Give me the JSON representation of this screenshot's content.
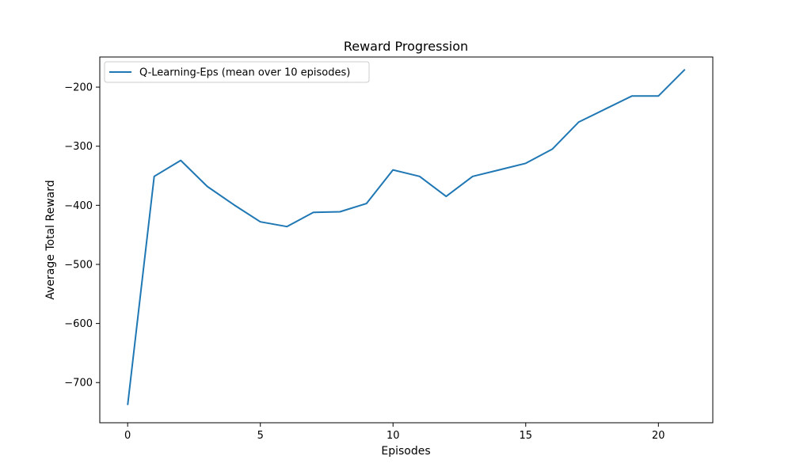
{
  "chart_data": {
    "type": "line",
    "title": "Reward Progression",
    "xlabel": "Episodes",
    "ylabel": "Average Total Reward",
    "xlim": [
      -1.05,
      22.05
    ],
    "ylim": [
      -768,
      -149
    ],
    "xticks": [
      0,
      5,
      10,
      15,
      20
    ],
    "yticks": [
      -700,
      -600,
      -500,
      -400,
      -300,
      -200
    ],
    "grid": false,
    "legend_position": "top-left",
    "series": [
      {
        "name": "Q-Learning-Eps (mean over 10 episodes)",
        "color": "#1f77b4",
        "x": [
          0,
          1,
          2,
          3,
          4,
          5,
          6,
          7,
          8,
          9,
          10,
          11,
          12,
          13,
          14,
          15,
          16,
          17,
          18,
          19,
          20,
          21
        ],
        "y": [
          -738,
          -351,
          -324,
          -368,
          -399,
          -428,
          -436,
          -412,
          -411,
          -397,
          -340,
          -351,
          -385,
          -351,
          -340,
          -329,
          -305,
          -259,
          -237,
          -215,
          -215,
          -170
        ]
      }
    ]
  }
}
